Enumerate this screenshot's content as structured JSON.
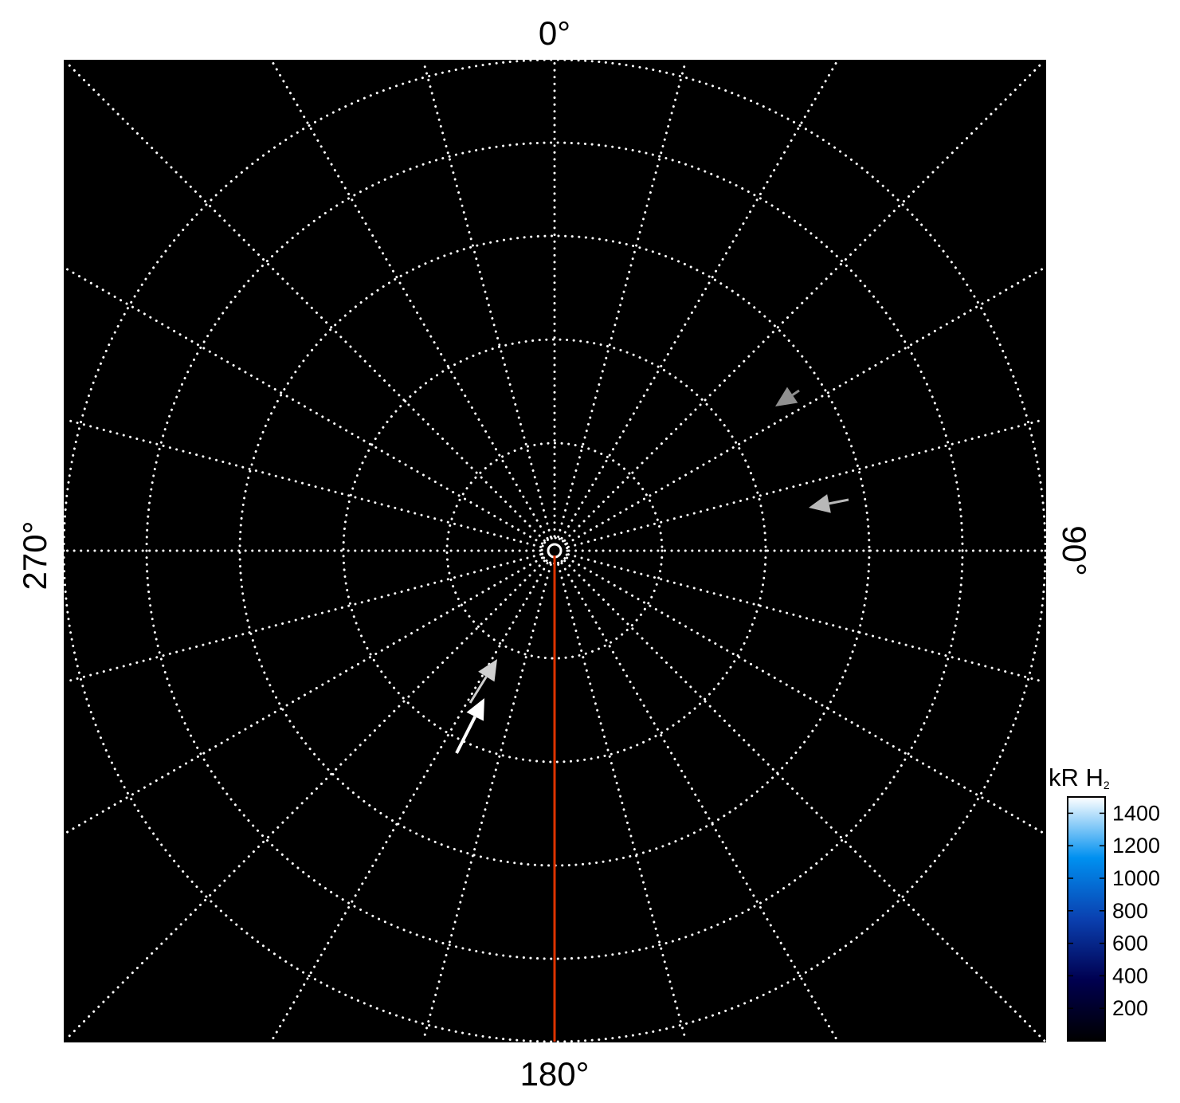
{
  "chart_data": {
    "type": "polar-map",
    "angular_tick_labels": [
      "0°",
      "90°",
      "180°",
      "270°"
    ],
    "angular_grid_step_deg": 15,
    "radial_grid_rings": 5,
    "grid": true,
    "background": "#000000",
    "grid_color": "#ffffff",
    "reference_line": {
      "angle_deg": 180,
      "color": "#dd3300"
    },
    "arrows": [
      {
        "name": "",
        "color": "#ffffff"
      },
      {
        "name": "",
        "color": "#d0d0d0"
      },
      {
        "name": "",
        "color": "#909090"
      },
      {
        "name": "",
        "color": "#b8b8b8"
      }
    ],
    "colorbar": {
      "label": "kR H",
      "label_subscript": "2",
      "ticks": [
        200,
        400,
        600,
        800,
        1000,
        1200,
        1400
      ],
      "range": [
        0,
        1500
      ],
      "colormap": [
        "#000000",
        "#000050",
        "#0a40b0",
        "#0090f0",
        "#ffffff"
      ],
      "placement": "bottom-right"
    }
  }
}
